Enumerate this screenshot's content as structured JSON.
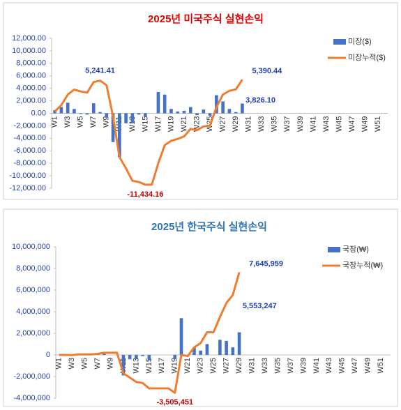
{
  "chart_data": [
    {
      "type": "bar-line",
      "title": "2025년 미국주식 실현손익",
      "title_color": "#e00000",
      "categories": [
        "W1",
        null,
        "W3",
        null,
        "W5",
        null,
        "W7",
        null,
        "W9",
        null,
        "W11",
        null,
        "W13",
        null,
        "W15",
        null,
        "W17",
        null,
        "W19",
        null,
        "W21",
        null,
        "W23",
        null,
        "W25",
        null,
        "W27",
        null,
        "W29",
        null,
        "W31",
        null,
        "W33",
        null,
        "W35",
        null,
        "W37",
        null,
        "W39",
        null,
        "W41",
        null,
        "W43",
        null,
        "W45",
        null,
        "W47",
        null,
        "W49",
        null,
        "W51",
        null
      ],
      "series": [
        {
          "name": "미장($)",
          "type": "bar",
          "color": "#4472c4",
          "values": [
            500,
            1000,
            1700,
            700,
            -100,
            -200,
            1600,
            200,
            -700,
            -4600,
            -7000,
            -1600,
            -1600,
            -200,
            -600,
            0,
            3400,
            3000,
            700,
            300,
            400,
            1000,
            -300,
            600,
            -400,
            2900,
            1900,
            700,
            200,
            1564.34,
            null,
            null,
            null,
            null,
            null,
            null,
            null,
            null,
            null,
            null,
            null,
            null,
            null,
            null,
            null,
            null,
            null,
            null,
            null,
            null,
            null,
            null
          ]
        },
        {
          "name": "미장누적($)",
          "type": "line",
          "color": "#ed7d31",
          "values": [
            300,
            1300,
            3000,
            3800,
            3500,
            3300,
            5000,
            5241.41,
            4500,
            -500,
            -7000,
            -8800,
            -10800,
            -11000,
            -11434.16,
            -11434.16,
            -8000,
            -5100,
            -4400,
            -4100,
            -3700,
            -2500,
            -2700,
            -2100,
            -2000,
            1000,
            3000,
            3600,
            3826.1,
            5390.44,
            null,
            null,
            null,
            null,
            null,
            null,
            null,
            null,
            null,
            null,
            null,
            null,
            null,
            null,
            null,
            null,
            null,
            null,
            null,
            null,
            null,
            null
          ],
          "value_labels": [
            null,
            null,
            null,
            null,
            null,
            null,
            null,
            "5,241.41",
            null,
            null,
            null,
            null,
            null,
            null,
            "-11,434.16",
            null,
            null,
            null,
            null,
            null,
            null,
            null,
            null,
            null,
            null,
            null,
            null,
            null,
            "3,826.10",
            "5,390.44",
            null,
            null,
            null,
            null,
            null,
            null,
            null,
            null,
            null,
            null,
            null,
            null,
            null,
            null,
            null,
            null,
            null,
            null,
            null,
            null,
            null,
            null
          ]
        }
      ],
      "ylim": [
        -12000,
        12000
      ],
      "yticks": [
        {
          "value": -12000,
          "label": "-12,000.00"
        },
        {
          "value": -10000,
          "label": "-10,000.00"
        },
        {
          "value": -8000,
          "label": "-8,000.00"
        },
        {
          "value": -6000,
          "label": "-6,000.00"
        },
        {
          "value": -4000,
          "label": "-4,000.00"
        },
        {
          "value": -2000,
          "label": "-2,000.00"
        },
        {
          "value": 0,
          "label": "0.00"
        },
        {
          "value": 2000,
          "label": "2,000.00"
        },
        {
          "value": 4000,
          "label": "4,000.00"
        },
        {
          "value": 6000,
          "label": "6,000.00"
        },
        {
          "value": 8000,
          "label": "8,000.00"
        },
        {
          "value": 10000,
          "label": "10,000.00"
        },
        {
          "value": 12000,
          "label": "12,000.00"
        }
      ],
      "legend": "top-right",
      "grid": false
    },
    {
      "type": "bar-line",
      "title": "2025년 한국주식 실현손익",
      "title_color": "#2e75b6",
      "categories": [
        "W1",
        null,
        "W3",
        null,
        "W5",
        null,
        "W7",
        null,
        "W9",
        null,
        "W11",
        null,
        "W13",
        null,
        "W15",
        null,
        "W17",
        null,
        "W19",
        null,
        "W21",
        null,
        "W23",
        null,
        "W25",
        null,
        "W27",
        null,
        "W29",
        null,
        "W31",
        null,
        "W33",
        null,
        "W35",
        null,
        "W37",
        null,
        "W39",
        null,
        "W41",
        null,
        "W43",
        null,
        "W45",
        null,
        "W47",
        null,
        "W49",
        null,
        "W51",
        null
      ],
      "series": [
        {
          "name": "국장(₩)",
          "type": "bar",
          "color": "#4472c4",
          "values": [
            0,
            0,
            -20000,
            70000,
            0,
            0,
            50000,
            100000,
            0,
            0,
            -1900000,
            -400000,
            -400000,
            -100000,
            -500000,
            0,
            0,
            0,
            -400000,
            3400000,
            -100000,
            700000,
            400000,
            1000000,
            0,
            1400000,
            1300000,
            700000,
            2092712,
            null,
            null,
            null,
            null,
            null,
            null,
            null,
            null,
            null,
            null,
            null,
            null,
            null,
            null,
            null,
            null,
            null,
            null,
            null,
            null,
            null,
            null,
            null
          ]
        },
        {
          "name": "국장누적(₩)",
          "type": "line",
          "color": "#ed7d31",
          "values": [
            0,
            0,
            -20000,
            50000,
            50000,
            50000,
            100000,
            200000,
            200000,
            200000,
            -1700000,
            -2100000,
            -2500000,
            -2600000,
            -3100000,
            -3100000,
            -3100000,
            -3100000,
            -3505451,
            0,
            -100000,
            700000,
            1100000,
            2100000,
            2100000,
            3500000,
            4800000,
            5553247,
            7645959,
            null,
            null,
            null,
            null,
            null,
            null,
            null,
            null,
            null,
            null,
            null,
            null,
            null,
            null,
            null,
            null,
            null,
            null,
            null,
            null,
            null,
            null,
            null
          ],
          "value_labels": [
            null,
            null,
            null,
            null,
            null,
            null,
            null,
            null,
            null,
            null,
            null,
            null,
            null,
            null,
            null,
            null,
            null,
            null,
            "-3,505,451",
            null,
            null,
            null,
            null,
            null,
            null,
            null,
            null,
            "5,553,247",
            "7,645,959",
            null,
            null,
            null,
            null,
            null,
            null,
            null,
            null,
            null,
            null,
            null,
            null,
            null,
            null,
            null,
            null,
            null,
            null,
            null,
            null,
            null,
            null,
            null
          ]
        }
      ],
      "ylim": [
        -4000000,
        10000000
      ],
      "yticks": [
        {
          "value": -4000000,
          "label": "-4,000,000"
        },
        {
          "value": -2000000,
          "label": "-2,000,000"
        },
        0,
        {
          "value": 2000000,
          "label": "2,000,000"
        },
        {
          "value": 4000000,
          "label": "4,000,000"
        },
        {
          "value": 6000000,
          "label": "6,000,000"
        },
        {
          "value": 8000000,
          "label": "8,000,000"
        },
        {
          "value": 10000000,
          "label": "10,000,000"
        }
      ],
      "legend": "top-right",
      "grid": false
    }
  ]
}
